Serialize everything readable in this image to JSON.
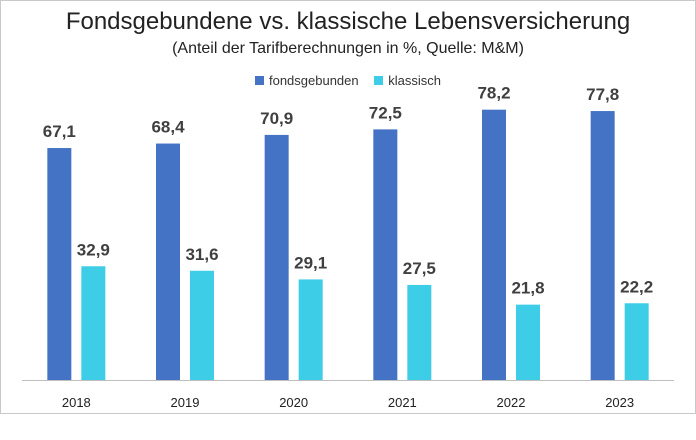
{
  "chart_data": {
    "type": "bar",
    "title": "Fondsgebundene  vs. klassische Lebensversicherung",
    "subtitle": "(Anteil der Tarifberechnungen in %, Quelle: M&M)",
    "categories": [
      "2018",
      "2019",
      "2020",
      "2021",
      "2022",
      "2023"
    ],
    "series": [
      {
        "name": "fondsgebunden",
        "color": "#4472C4",
        "values": [
          67.1,
          68.4,
          70.9,
          72.5,
          78.2,
          77.8
        ],
        "labels": [
          "67,1",
          "68,4",
          "70,9",
          "72,5",
          "78,2",
          "77,8"
        ]
      },
      {
        "name": "klassisch",
        "color": "#3DCDE6",
        "values": [
          32.9,
          31.6,
          29.1,
          27.5,
          21.8,
          22.2
        ],
        "labels": [
          "32,9",
          "31,6",
          "29,1",
          "27,5",
          "21,8",
          "22,2"
        ]
      }
    ],
    "ylim": [
      0,
      81
    ],
    "grid": false,
    "legend": "top-center"
  }
}
